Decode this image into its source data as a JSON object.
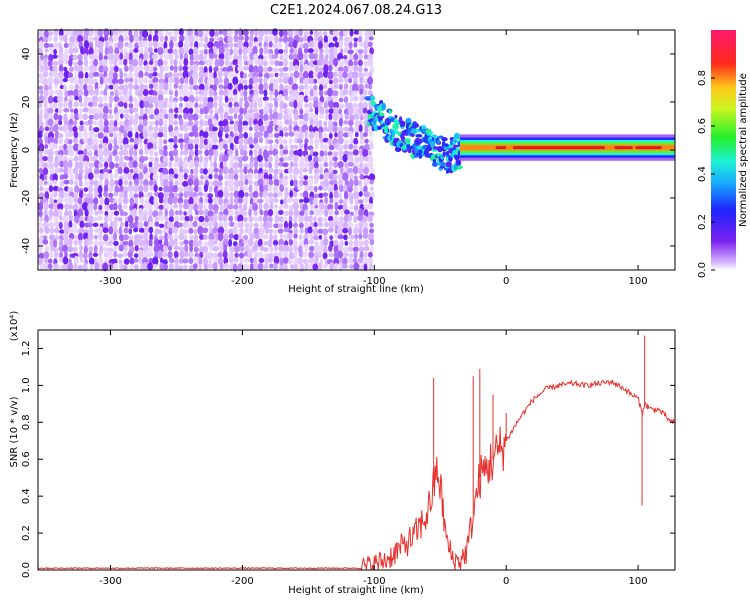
{
  "title": "C2E1.2024.067.08.24.G13",
  "colors": {
    "spectrogram_sparse": "#7a22f0",
    "snr_line": "#e8302c",
    "ridge": "#d81e1e"
  },
  "chart_data": [
    {
      "type": "heatmap",
      "name": "spectrogram",
      "xlabel": "Height of straight line (km)",
      "ylabel": "Frequency (Hz)",
      "xlim": [
        -355,
        128
      ],
      "ylim": [
        -50,
        50
      ],
      "xticks": [
        "-300",
        "-200",
        "-100",
        "0",
        "100"
      ],
      "xtick_values": [
        -300,
        -200,
        -100,
        0,
        100
      ],
      "yticks": [
        "40",
        "20",
        "0",
        "-20",
        "-40"
      ],
      "ytick_values": [
        40,
        20,
        0,
        -20,
        -40
      ],
      "colorbar": {
        "label": "Normalized spectral amplitude",
        "range": [
          0,
          1
        ],
        "ticks": [
          "0.0",
          "0.2",
          "0.4",
          "0.6",
          "0.8"
        ],
        "tick_values": [
          0,
          0.2,
          0.4,
          0.6,
          0.8
        ],
        "colormap": "rainbow (white -> violet -> blue -> cyan -> green -> yellow -> red -> magenta)"
      },
      "features": {
        "noise_region_x": [
          -355,
          -103
        ],
        "noise_amplitude_typical": 0.1,
        "ridge_x": [
          -100,
          128
        ],
        "ridge_frequency_hz": [
          [
            -100,
            15
          ],
          [
            -80,
            6
          ],
          [
            -60,
            2
          ],
          [
            -45,
            -2
          ],
          [
            -30,
            0
          ],
          [
            -20,
            1
          ],
          [
            0,
            1
          ],
          [
            50,
            1
          ],
          [
            100,
            1
          ],
          [
            128,
            1
          ]
        ],
        "ridge_peak_amplitude": 0.95
      }
    },
    {
      "type": "line",
      "name": "snr",
      "xlabel": "Height of straight line (km)",
      "ylabel": "SNR (10 * v/v)",
      "y_multiplier": "(x10⁴)",
      "xlim": [
        -355,
        128
      ],
      "ylim": [
        0,
        1.3
      ],
      "xticks": [
        "-300",
        "-200",
        "-100",
        "0",
        "100"
      ],
      "xtick_values": [
        -300,
        -200,
        -100,
        0,
        100
      ],
      "yticks": [
        "0.0",
        "0.2",
        "0.4",
        "0.6",
        "0.8",
        "1.0",
        "1.2"
      ],
      "ytick_values": [
        0,
        0.2,
        0.4,
        0.6,
        0.8,
        1.0,
        1.2
      ],
      "x": [
        -355,
        -300,
        -250,
        -200,
        -150,
        -110,
        -100,
        -90,
        -80,
        -70,
        -60,
        -55,
        -52,
        -50,
        -45,
        -40,
        -35,
        -30,
        -25,
        -20,
        -15,
        -10,
        -5,
        0,
        10,
        20,
        30,
        40,
        50,
        60,
        70,
        80,
        90,
        95,
        100,
        103,
        105,
        108,
        110,
        115,
        120,
        125,
        128
      ],
      "values": [
        0.01,
        0.01,
        0.01,
        0.01,
        0.01,
        0.01,
        0.03,
        0.06,
        0.12,
        0.18,
        0.3,
        0.45,
        0.55,
        0.45,
        0.15,
        0.05,
        0.05,
        0.1,
        0.3,
        0.5,
        0.55,
        0.6,
        0.65,
        0.7,
        0.82,
        0.92,
        0.98,
        1.0,
        1.01,
        1.0,
        1.01,
        1.02,
        0.98,
        0.95,
        0.93,
        0.85,
        0.9,
        0.88,
        0.87,
        0.87,
        0.84,
        0.8,
        0.8
      ],
      "spikes": [
        [
          -55,
          1.04
        ],
        [
          -25,
          1.05
        ],
        [
          -20,
          1.09
        ],
        [
          -10,
          0.95
        ],
        [
          0,
          0.85
        ],
        [
          103,
          0.35
        ],
        [
          105,
          1.27
        ],
        [
          107,
          0.9
        ]
      ]
    }
  ]
}
